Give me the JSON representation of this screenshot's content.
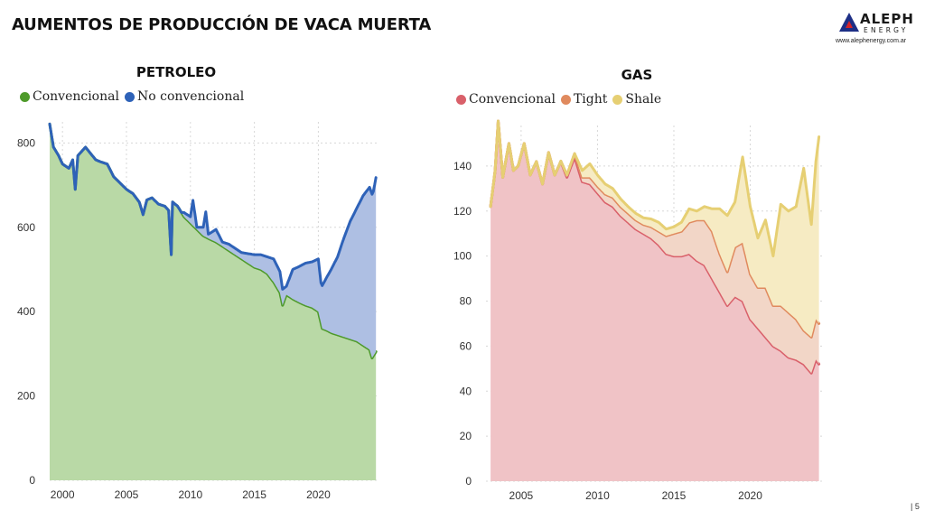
{
  "header": {
    "title": "AUMENTOS DE PRODUCCIÓN DE VACA MUERTA"
  },
  "logo": {
    "name_top": "ALEPH",
    "name_bottom": "ENERGY",
    "url": "www.alephenergy.com.ar"
  },
  "footer": {
    "page_number": "| 5"
  },
  "colors": {
    "oil_conventional": "#4e9a2a",
    "oil_conventional_fill": "#b9d9a6",
    "oil_unconventional": "#2e62b8",
    "oil_unconventional_fill": "#aebfe3",
    "gas_conventional": "#d9606a",
    "gas_conventional_fill": "#f0c3c6",
    "gas_tight": "#e08a5e",
    "gas_tight_fill": "#f2d6c7",
    "gas_shale": "#e6cf73",
    "gas_shale_fill": "#f6ebc3"
  },
  "chart_data": [
    {
      "type": "area",
      "title": "PETROLEO",
      "stacked": true,
      "legend_position": "top-left",
      "grid": true,
      "xlim": [
        1999,
        2024.7
      ],
      "ylim": [
        0,
        850
      ],
      "x_ticks": [
        2000,
        2005,
        2010,
        2015,
        2020
      ],
      "y_ticks": [
        0,
        200,
        400,
        600,
        800
      ],
      "series": [
        {
          "name": "Convencional",
          "points": [
            [
              1999.0,
              845
            ],
            [
              1999.3,
              790
            ],
            [
              1999.7,
              770
            ],
            [
              2000.0,
              750
            ],
            [
              2000.5,
              740
            ],
            [
              2000.8,
              760
            ],
            [
              2001.0,
              690
            ],
            [
              2001.2,
              770
            ],
            [
              2001.5,
              780
            ],
            [
              2001.8,
              790
            ],
            [
              2002.2,
              775
            ],
            [
              2002.6,
              760
            ],
            [
              2003.0,
              755
            ],
            [
              2003.5,
              750
            ],
            [
              2004.0,
              720
            ],
            [
              2004.5,
              705
            ],
            [
              2005.0,
              690
            ],
            [
              2005.5,
              680
            ],
            [
              2006.0,
              660
            ],
            [
              2006.3,
              630
            ],
            [
              2006.6,
              665
            ],
            [
              2007.0,
              670
            ],
            [
              2007.5,
              655
            ],
            [
              2008.0,
              650
            ],
            [
              2008.3,
              640
            ],
            [
              2008.5,
              535
            ],
            [
              2008.6,
              660
            ],
            [
              2009.0,
              650
            ],
            [
              2009.5,
              625
            ],
            [
              2010.0,
              610
            ],
            [
              2010.5,
              595
            ],
            [
              2011.0,
              580
            ],
            [
              2011.5,
              572
            ],
            [
              2012.0,
              565
            ],
            [
              2012.5,
              555
            ],
            [
              2013.0,
              545
            ],
            [
              2013.5,
              535
            ],
            [
              2014.0,
              525
            ],
            [
              2014.5,
              515
            ],
            [
              2015.0,
              505
            ],
            [
              2015.5,
              500
            ],
            [
              2016.0,
              490
            ],
            [
              2016.5,
              470
            ],
            [
              2017.0,
              445
            ],
            [
              2017.2,
              415
            ],
            [
              2017.5,
              440
            ],
            [
              2018.0,
              430
            ],
            [
              2018.5,
              422
            ],
            [
              2019.0,
              415
            ],
            [
              2019.5,
              410
            ],
            [
              2020.0,
              400
            ],
            [
              2020.3,
              360
            ],
            [
              2020.7,
              355
            ],
            [
              2021.0,
              350
            ],
            [
              2021.5,
              345
            ],
            [
              2022.0,
              340
            ],
            [
              2022.5,
              335
            ],
            [
              2023.0,
              330
            ],
            [
              2023.5,
              320
            ],
            [
              2024.0,
              310
            ],
            [
              2024.2,
              290
            ],
            [
              2024.5,
              305
            ]
          ]
        },
        {
          "name": "No convencional",
          "points": [
            [
              1999.0,
              0
            ],
            [
              2009.3,
              0
            ],
            [
              2009.5,
              10
            ],
            [
              2010.0,
              15
            ],
            [
              2010.2,
              60
            ],
            [
              2010.5,
              5
            ],
            [
              2011.0,
              20
            ],
            [
              2011.2,
              60
            ],
            [
              2011.4,
              10
            ],
            [
              2012.0,
              30
            ],
            [
              2012.5,
              10
            ],
            [
              2013.0,
              15
            ],
            [
              2014.0,
              15
            ],
            [
              2015.0,
              30
            ],
            [
              2015.5,
              35
            ],
            [
              2016.0,
              40
            ],
            [
              2016.5,
              55
            ],
            [
              2017.0,
              50
            ],
            [
              2017.5,
              20
            ],
            [
              2018.0,
              70
            ],
            [
              2018.5,
              85
            ],
            [
              2019.0,
              100
            ],
            [
              2019.5,
              108
            ],
            [
              2020.0,
              125
            ],
            [
              2020.2,
              95
            ],
            [
              2020.5,
              115
            ],
            [
              2021.0,
              150
            ],
            [
              2021.5,
              185
            ],
            [
              2022.0,
              235
            ],
            [
              2022.5,
              280
            ],
            [
              2023.0,
              315
            ],
            [
              2023.5,
              355
            ],
            [
              2024.0,
              385
            ],
            [
              2024.3,
              390
            ],
            [
              2024.5,
              413
            ]
          ]
        }
      ]
    },
    {
      "type": "area",
      "title": "GAS",
      "stacked": true,
      "legend_position": "top-left",
      "grid": true,
      "xlim": [
        2002.7,
        2024.7
      ],
      "ylim": [
        0,
        158
      ],
      "x_ticks": [
        2005,
        2010,
        2015,
        2020
      ],
      "y_ticks": [
        0,
        20,
        40,
        60,
        80,
        100,
        120,
        140
      ],
      "series": [
        {
          "name": "Convencional",
          "points": [
            [
              2003.0,
              122
            ],
            [
              2003.3,
              138
            ],
            [
              2003.5,
              160
            ],
            [
              2003.8,
              135
            ],
            [
              2004.2,
              150
            ],
            [
              2004.5,
              138
            ],
            [
              2004.8,
              140
            ],
            [
              2005.2,
              150
            ],
            [
              2005.6,
              136
            ],
            [
              2006.0,
              142
            ],
            [
              2006.4,
              132
            ],
            [
              2006.8,
              146
            ],
            [
              2007.2,
              136
            ],
            [
              2007.6,
              142
            ],
            [
              2008.0,
              135
            ],
            [
              2008.5,
              144
            ],
            [
              2009.0,
              133
            ],
            [
              2009.5,
              132
            ],
            [
              2010.0,
              128
            ],
            [
              2010.5,
              124
            ],
            [
              2011.0,
              122
            ],
            [
              2011.5,
              118
            ],
            [
              2012.0,
              115
            ],
            [
              2012.5,
              112
            ],
            [
              2013.0,
              110
            ],
            [
              2013.5,
              108
            ],
            [
              2014.0,
              105
            ],
            [
              2014.5,
              101
            ],
            [
              2015.0,
              100
            ],
            [
              2015.5,
              100
            ],
            [
              2016.0,
              101
            ],
            [
              2016.5,
              98
            ],
            [
              2017.0,
              96
            ],
            [
              2017.5,
              90
            ],
            [
              2018.0,
              84
            ],
            [
              2018.5,
              78
            ],
            [
              2019.0,
              82
            ],
            [
              2019.5,
              80
            ],
            [
              2020.0,
              72
            ],
            [
              2020.5,
              68
            ],
            [
              2021.0,
              64
            ],
            [
              2021.5,
              60
            ],
            [
              2022.0,
              58
            ],
            [
              2022.5,
              55
            ],
            [
              2023.0,
              54
            ],
            [
              2023.5,
              52
            ],
            [
              2024.0,
              48
            ],
            [
              2024.3,
              54
            ],
            [
              2024.5,
              52
            ]
          ]
        },
        {
          "name": "Tight",
          "points": [
            [
              2003.0,
              0
            ],
            [
              2007.5,
              0
            ],
            [
              2008.0,
              1
            ],
            [
              2009.0,
              2
            ],
            [
              2009.5,
              3
            ],
            [
              2010.0,
              3
            ],
            [
              2011.0,
              4
            ],
            [
              2012.0,
              4
            ],
            [
              2013.0,
              4
            ],
            [
              2014.0,
              6
            ],
            [
              2015.0,
              10
            ],
            [
              2015.5,
              11
            ],
            [
              2016.0,
              14
            ],
            [
              2016.5,
              18
            ],
            [
              2017.0,
              20
            ],
            [
              2017.5,
              21
            ],
            [
              2018.0,
              17
            ],
            [
              2018.5,
              15
            ],
            [
              2019.0,
              22
            ],
            [
              2019.5,
              26
            ],
            [
              2020.0,
              20
            ],
            [
              2020.5,
              18
            ],
            [
              2021.0,
              22
            ],
            [
              2021.5,
              18
            ],
            [
              2022.0,
              20
            ],
            [
              2022.5,
              20
            ],
            [
              2023.0,
              18
            ],
            [
              2023.5,
              15
            ],
            [
              2024.0,
              16
            ],
            [
              2024.3,
              18
            ],
            [
              2024.5,
              18
            ]
          ]
        },
        {
          "name": "Shale",
          "points": [
            [
              2003.0,
              0
            ],
            [
              2008.5,
              0
            ],
            [
              2009.0,
              3
            ],
            [
              2009.5,
              6
            ],
            [
              2010.0,
              5
            ],
            [
              2011.0,
              4
            ],
            [
              2012.0,
              3
            ],
            [
              2013.0,
              3
            ],
            [
              2014.0,
              4
            ],
            [
              2014.5,
              3
            ],
            [
              2015.0,
              3
            ],
            [
              2015.5,
              4
            ],
            [
              2016.0,
              6
            ],
            [
              2016.5,
              4
            ],
            [
              2017.0,
              6
            ],
            [
              2017.5,
              10
            ],
            [
              2018.0,
              20
            ],
            [
              2018.5,
              25
            ],
            [
              2019.0,
              20
            ],
            [
              2019.5,
              38
            ],
            [
              2020.0,
              30
            ],
            [
              2020.5,
              22
            ],
            [
              2021.0,
              30
            ],
            [
              2021.5,
              22
            ],
            [
              2022.0,
              45
            ],
            [
              2022.5,
              45
            ],
            [
              2023.0,
              50
            ],
            [
              2023.5,
              72
            ],
            [
              2024.0,
              50
            ],
            [
              2024.3,
              70
            ],
            [
              2024.5,
              83
            ]
          ]
        }
      ]
    }
  ]
}
